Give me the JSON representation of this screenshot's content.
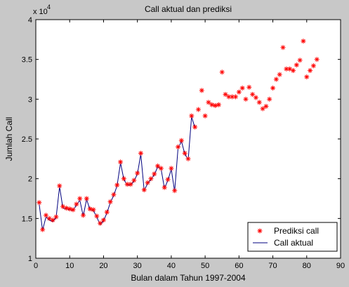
{
  "chart_data": {
    "type": "line",
    "title": "Call aktual dan prediksi",
    "xlabel": "Bulan dalam Tahun 1997-2004",
    "ylabel": "Jumlah Call",
    "y_multiplier": "x 10",
    "y_exponent": "4",
    "xlim": [
      0,
      90
    ],
    "ylim": [
      1,
      4
    ],
    "xticks": [
      0,
      10,
      20,
      30,
      40,
      50,
      60,
      70,
      80,
      90
    ],
    "yticks": [
      1,
      1.5,
      2,
      2.5,
      3,
      3.5,
      4
    ],
    "grid": false,
    "legend_position": "bottom-right",
    "colors": {
      "figure_bg": "#c8c8c8",
      "axes_bg": "#ffffff",
      "prediksi": "#ff0000",
      "aktual": "#00007f"
    },
    "series": [
      {
        "name": "Prediksi call",
        "style": "marker-star",
        "x": [
          1,
          2,
          3,
          4,
          5,
          6,
          7,
          8,
          9,
          10,
          11,
          12,
          13,
          14,
          15,
          16,
          17,
          18,
          19,
          20,
          21,
          22,
          23,
          24,
          25,
          26,
          27,
          28,
          29,
          30,
          31,
          32,
          33,
          34,
          35,
          36,
          37,
          38,
          39,
          40,
          41,
          42,
          43,
          44,
          45,
          46,
          47,
          48,
          49,
          50,
          51,
          52,
          53,
          54,
          55,
          56,
          57,
          58,
          59,
          60,
          61,
          62,
          63,
          64,
          65,
          66,
          67,
          68,
          69,
          70,
          71,
          72,
          73,
          74,
          75,
          76,
          77,
          78,
          79,
          80,
          81,
          82,
          83
        ],
        "y": [
          1.7,
          1.36,
          1.54,
          1.5,
          1.48,
          1.52,
          1.91,
          1.65,
          1.63,
          1.62,
          1.61,
          1.68,
          1.75,
          1.54,
          1.75,
          1.62,
          1.61,
          1.53,
          1.44,
          1.48,
          1.58,
          1.71,
          1.8,
          1.92,
          2.21,
          2.0,
          1.93,
          1.93,
          1.98,
          2.07,
          2.32,
          1.86,
          1.95,
          2.0,
          2.06,
          2.16,
          2.13,
          1.89,
          1.99,
          2.13,
          1.85,
          2.4,
          2.48,
          2.32,
          2.25,
          2.79,
          2.65,
          2.87,
          3.11,
          2.79,
          2.96,
          2.93,
          2.92,
          2.93,
          3.34,
          3.06,
          3.03,
          3.03,
          3.03,
          3.09,
          3.14,
          3.0,
          3.15,
          3.06,
          3.02,
          2.96,
          2.88,
          2.91,
          3.0,
          3.14,
          3.25,
          3.31,
          3.65,
          3.38,
          3.38,
          3.36,
          3.43,
          3.49,
          3.73,
          3.28,
          3.36,
          3.42,
          3.5
        ]
      },
      {
        "name": "Call aktual",
        "style": "line",
        "x": [
          1,
          2,
          3,
          4,
          5,
          6,
          7,
          8,
          9,
          10,
          11,
          12,
          13,
          14,
          15,
          16,
          17,
          18,
          19,
          20,
          21,
          22,
          23,
          24,
          25,
          26,
          27,
          28,
          29,
          30,
          31,
          32,
          33,
          34,
          35,
          36,
          37,
          38,
          39,
          40,
          41,
          42,
          43,
          44,
          45,
          46,
          47
        ],
        "y": [
          1.68,
          1.35,
          1.52,
          1.48,
          1.46,
          1.51,
          1.9,
          1.63,
          1.62,
          1.61,
          1.6,
          1.67,
          1.73,
          1.53,
          1.74,
          1.61,
          1.6,
          1.52,
          1.42,
          1.47,
          1.57,
          1.7,
          1.79,
          1.91,
          2.2,
          1.99,
          1.92,
          1.92,
          1.97,
          2.06,
          2.31,
          1.85,
          1.94,
          1.99,
          2.05,
          2.15,
          2.12,
          1.88,
          1.98,
          2.12,
          1.84,
          2.38,
          2.47,
          2.31,
          2.24,
          2.78,
          2.64
        ]
      }
    ]
  }
}
